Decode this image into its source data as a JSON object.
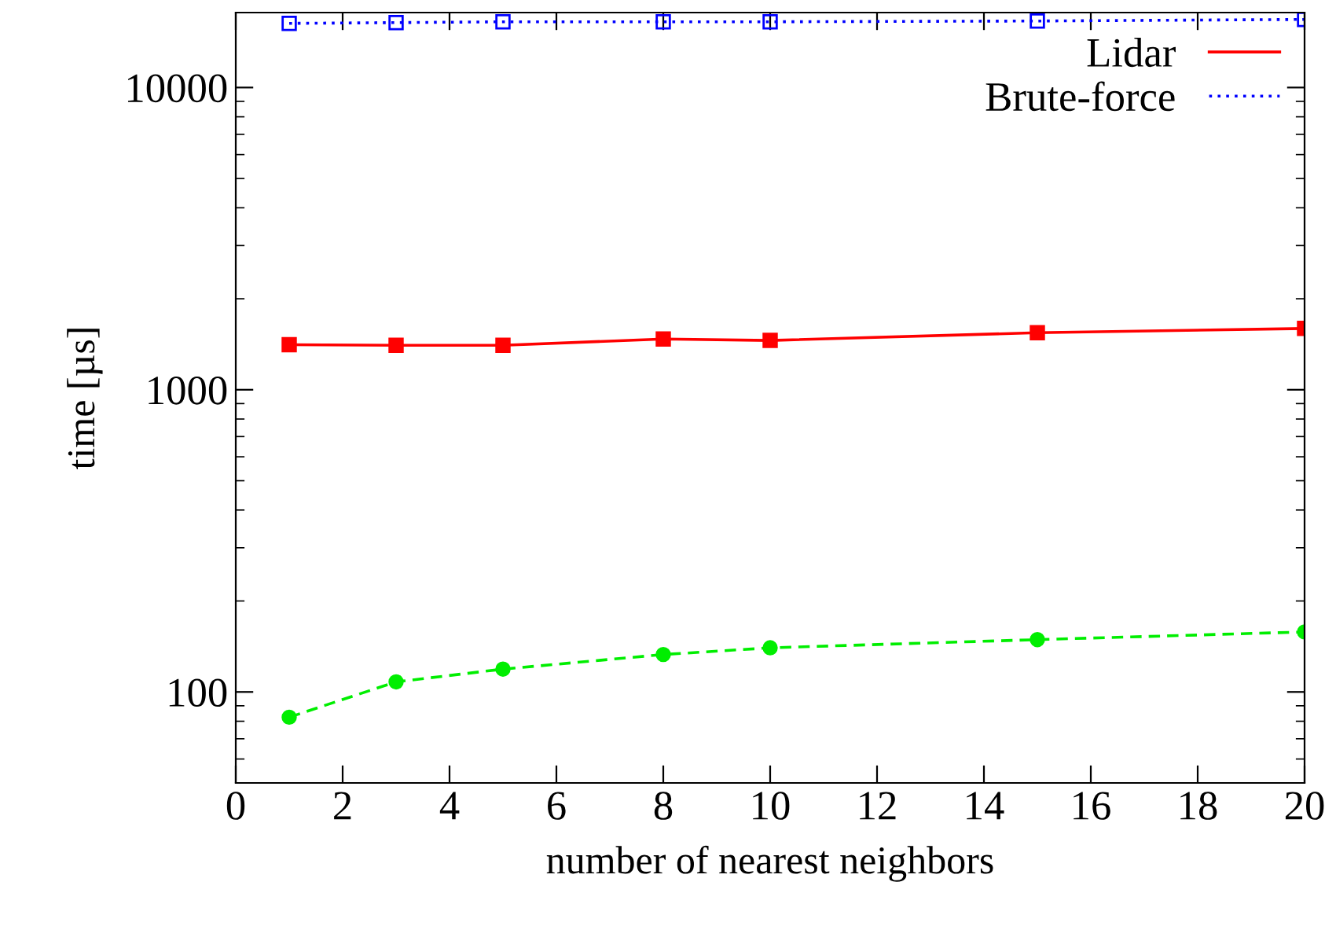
{
  "chart_data": {
    "type": "line",
    "xlabel": "number of nearest neighbors",
    "ylabel": "time [µs]",
    "x": [
      1,
      3,
      5,
      8,
      10,
      15,
      20
    ],
    "series": [
      {
        "name": "Lidar",
        "color": "#ff0000",
        "marker": "square",
        "line_style": "solid",
        "values": [
          1409,
          1403,
          1403,
          1472,
          1456,
          1544,
          1595
        ]
      },
      {
        "color": "#00ee00",
        "marker": "circle",
        "line_style": "dashed",
        "values": [
          82.5,
          108,
          119,
          133,
          140,
          149,
          158
        ]
      },
      {
        "name": "Brute-force",
        "color": "#0000ff",
        "marker": "square_open",
        "line_style": "dotted",
        "values": [
          16300,
          16400,
          16500,
          16500,
          16500,
          16600,
          16800
        ]
      }
    ],
    "log": "y",
    "xlim": [
      0,
      20
    ],
    "xticks": [
      0,
      2,
      4,
      6,
      8,
      10,
      12,
      14,
      16,
      18,
      20
    ],
    "ylim": [
      50,
      17700
    ],
    "yticks": [
      100,
      1000,
      10000
    ],
    "grid": false,
    "legend": "top right"
  }
}
